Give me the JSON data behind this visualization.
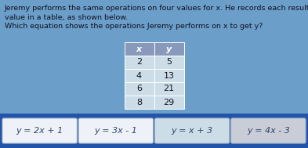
{
  "bg_color_top": "#6699cc",
  "bg_color_bottom": "#2255aa",
  "title_line1": "Jeremy performs the same operations on four values for x. He records each resulting y",
  "title_line2": "value in a table, as shown below.",
  "title_line3": "Which equation shows the operations Jeremy performs on x to get y?",
  "table_headers": [
    "x",
    "y"
  ],
  "table_data": [
    [
      2,
      5
    ],
    [
      4,
      13
    ],
    [
      6,
      21
    ],
    [
      8,
      29
    ]
  ],
  "table_header_bg": "#8899bb",
  "table_cell_bg": "#ccdde8",
  "table_border": "#aabbcc",
  "choices": [
    "y = 2x + 1",
    "y = 3x - 1",
    "y = x + 3",
    "y = 4x - 3"
  ],
  "choice_bg": [
    "#eef2f8",
    "#eef2f8",
    "#ccdde8",
    "#c8cdd8"
  ],
  "choice_text_color": "#334466",
  "text_color": "#111122",
  "title_fontsize": 6.8,
  "choice_fontsize": 8.0,
  "table_fontsize": 8.0
}
